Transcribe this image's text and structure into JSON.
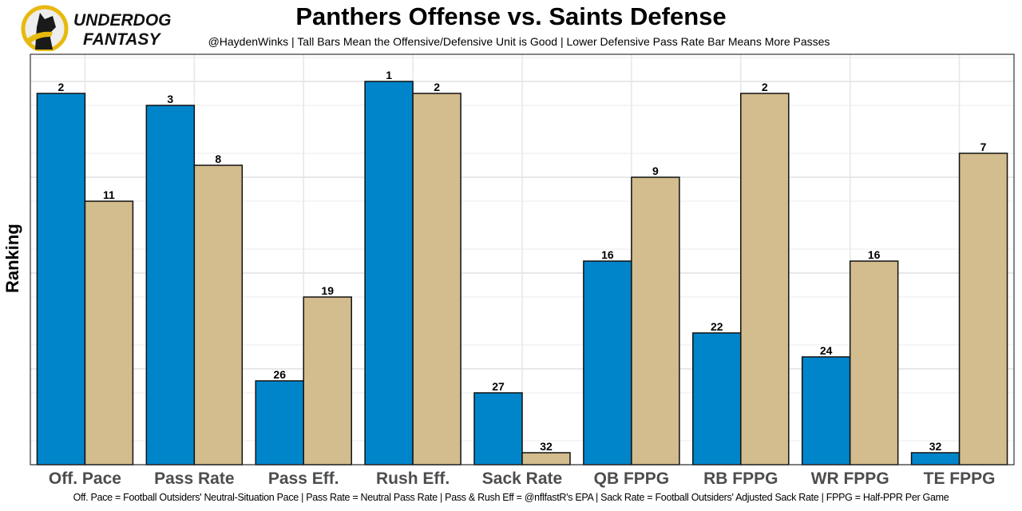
{
  "logo": {
    "line1": "UNDERDOG",
    "line2": "FANTASY"
  },
  "chart_data": {
    "type": "bar",
    "title": "Panthers Offense vs. Saints Defense",
    "subtitle": "@HaydenWinks | Tall Bars Mean the Offensive/Defensive Unit is Good | Lower Defensive Pass Rate Bar Means More Passes",
    "ylabel": "Ranking",
    "xlabel": "",
    "caption": "Off. Pace = Football Outsiders' Neutral-Situation Pace | Pass Rate = Neutral Pass Rate | Pass & Rush Eff = @nflfastR's EPA | Sack Rate = Football Outsiders' Adjusted Sack Rate | FPPG = Half-PPR Per Game",
    "categories": [
      "Off. Pace",
      "Pass Rate",
      "Pass Eff.",
      "Rush Eff.",
      "Sack Rate",
      "QB FPPG",
      "RB FPPG",
      "WR FPPG",
      "TE FPPG"
    ],
    "series": [
      {
        "name": "Panthers Offense",
        "color": "#0085CA",
        "values": [
          2,
          3,
          26,
          1,
          27,
          16,
          22,
          24,
          32
        ]
      },
      {
        "name": "Saints Defense",
        "color": "#D3BC8D",
        "values": [
          11,
          8,
          19,
          2,
          32,
          9,
          2,
          16,
          7
        ]
      }
    ],
    "note": "bar height = 33 - rank",
    "grid": true,
    "legend": "none"
  }
}
